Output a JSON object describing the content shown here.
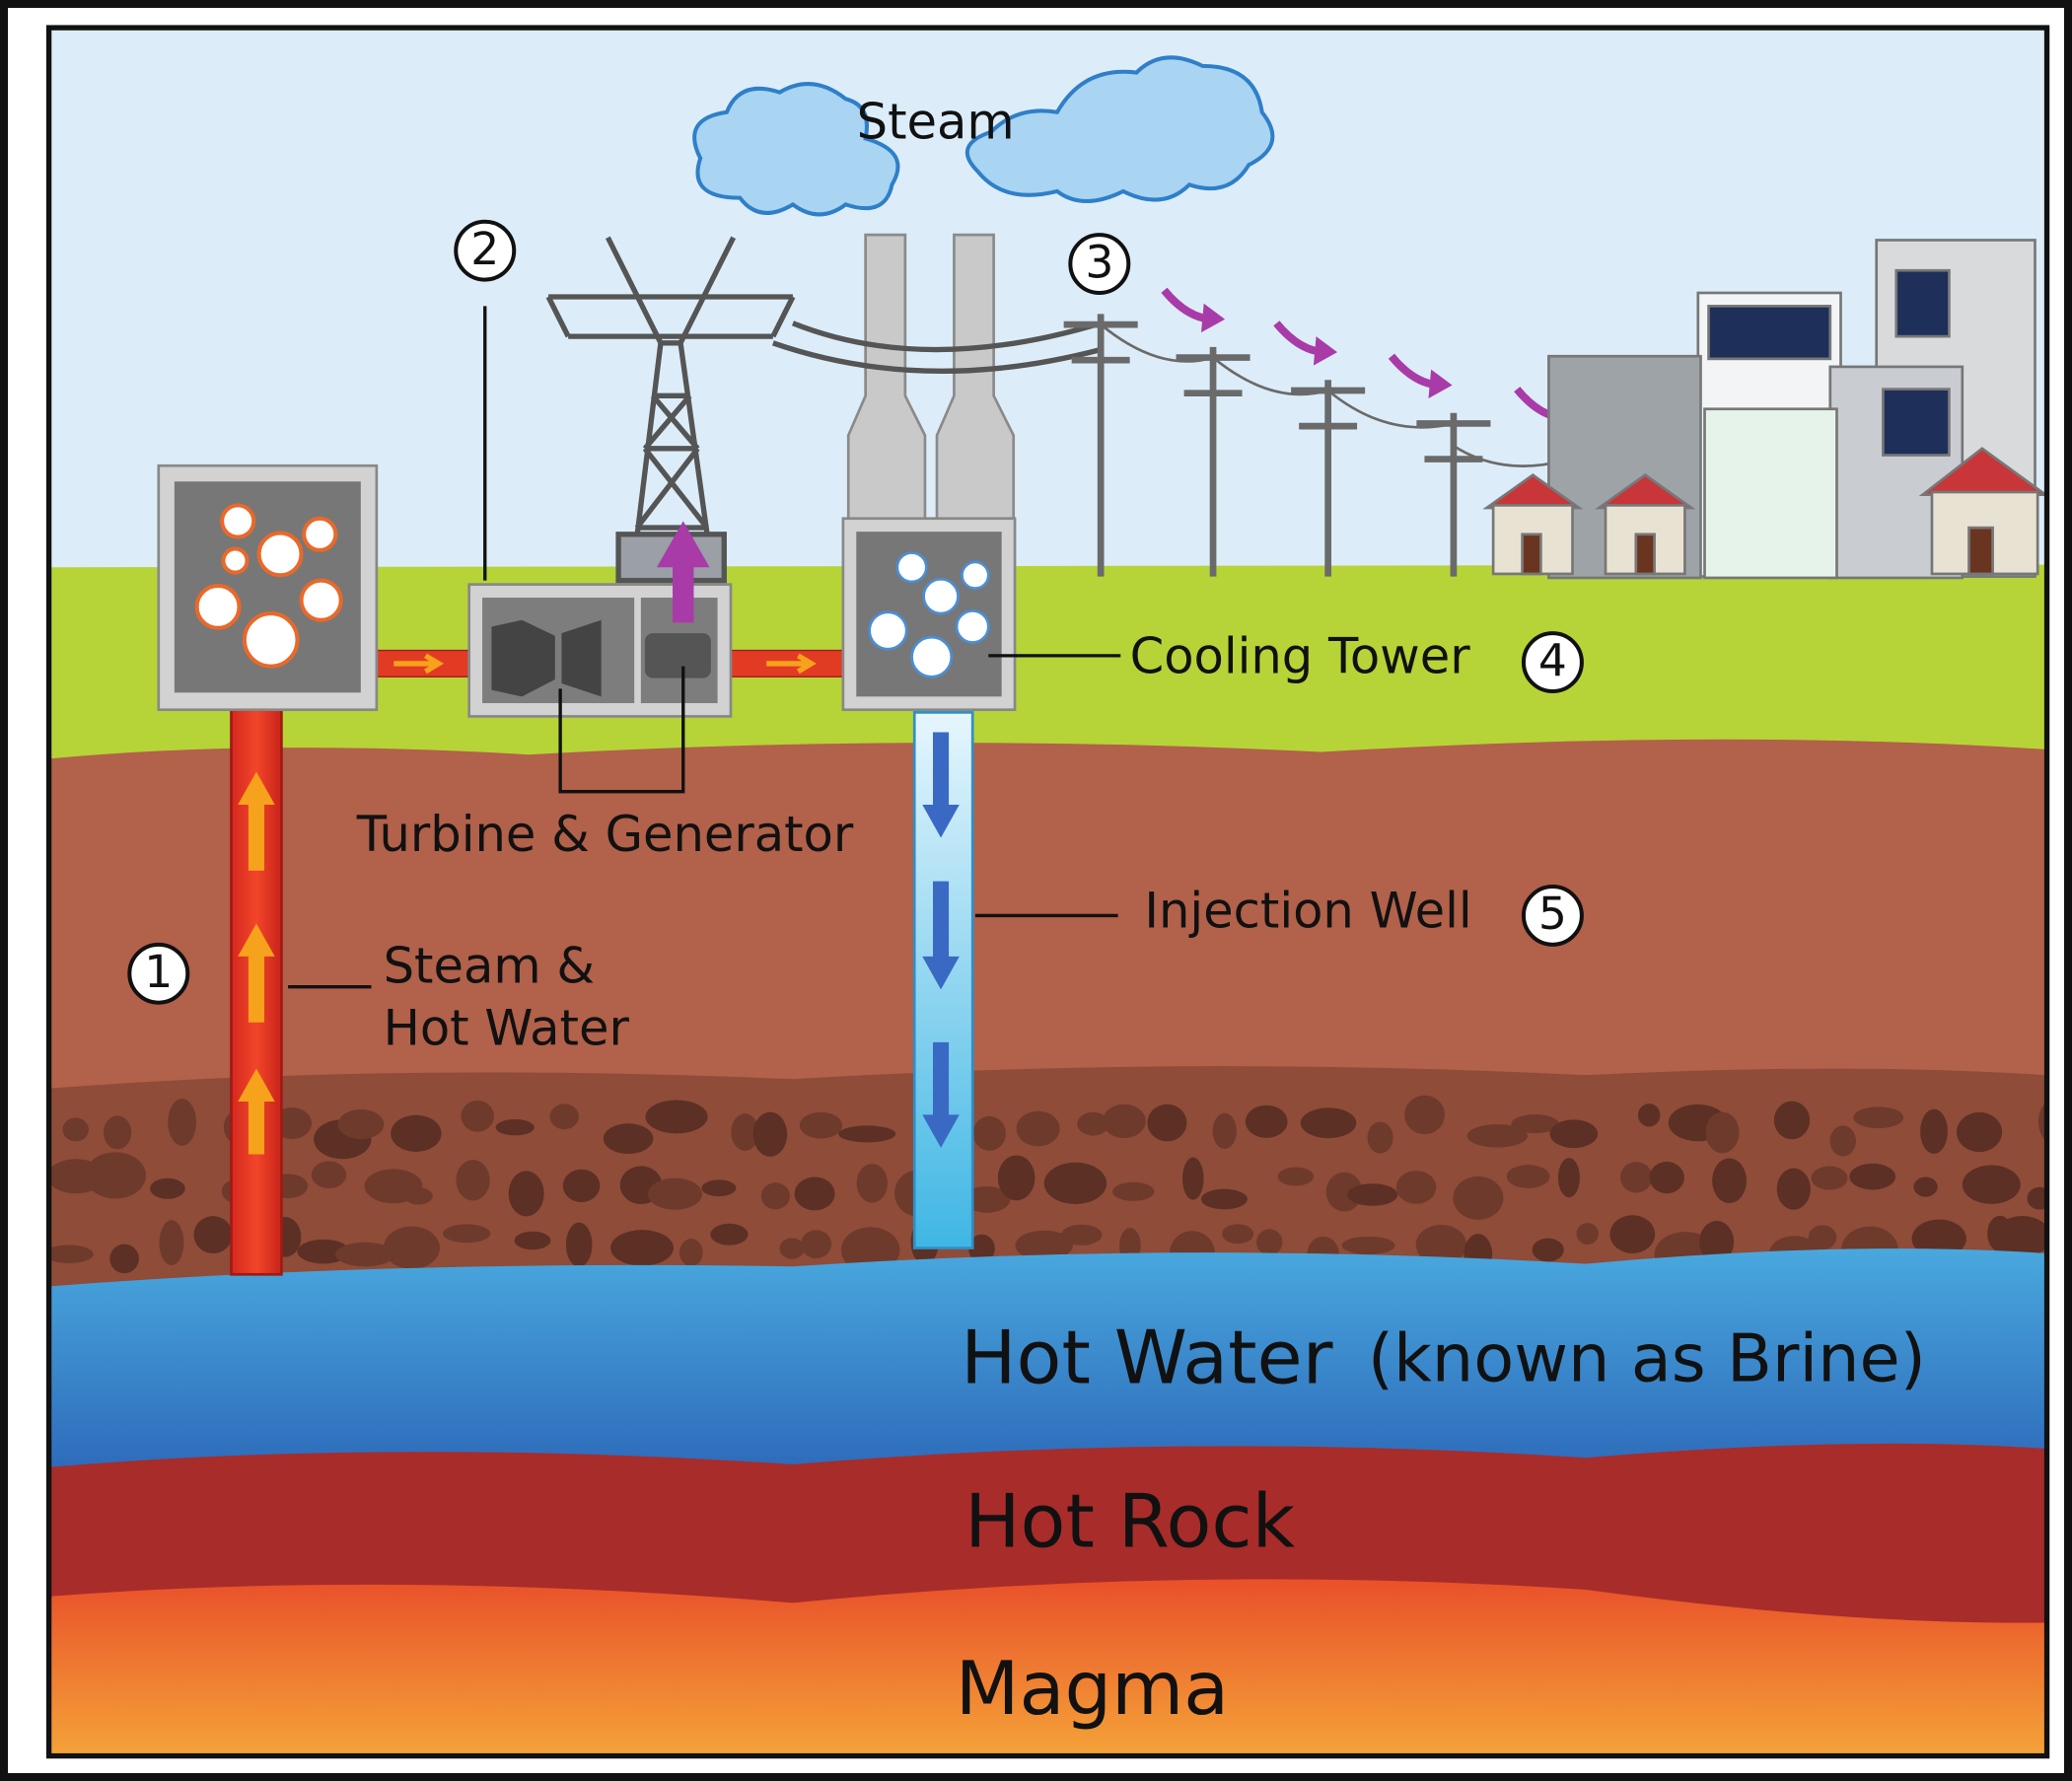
{
  "labels": {
    "steam": "Steam"
  },
  "steps": [
    {
      "number": 1,
      "label_lines": [
        "Steam &",
        "Hot Water"
      ]
    },
    {
      "number": 2,
      "label_lines": [
        "Turbine & Generator"
      ]
    },
    {
      "number": 3
    },
    {
      "number": 4,
      "label_lines": [
        "Cooling Tower"
      ]
    },
    {
      "number": 5,
      "label_lines": [
        "Injection Well"
      ]
    }
  ],
  "layers": {
    "hot_water": "Hot Water",
    "hot_water_note": "(known as Brine)",
    "hot_rock": "Hot Rock",
    "magma": "Magma"
  }
}
